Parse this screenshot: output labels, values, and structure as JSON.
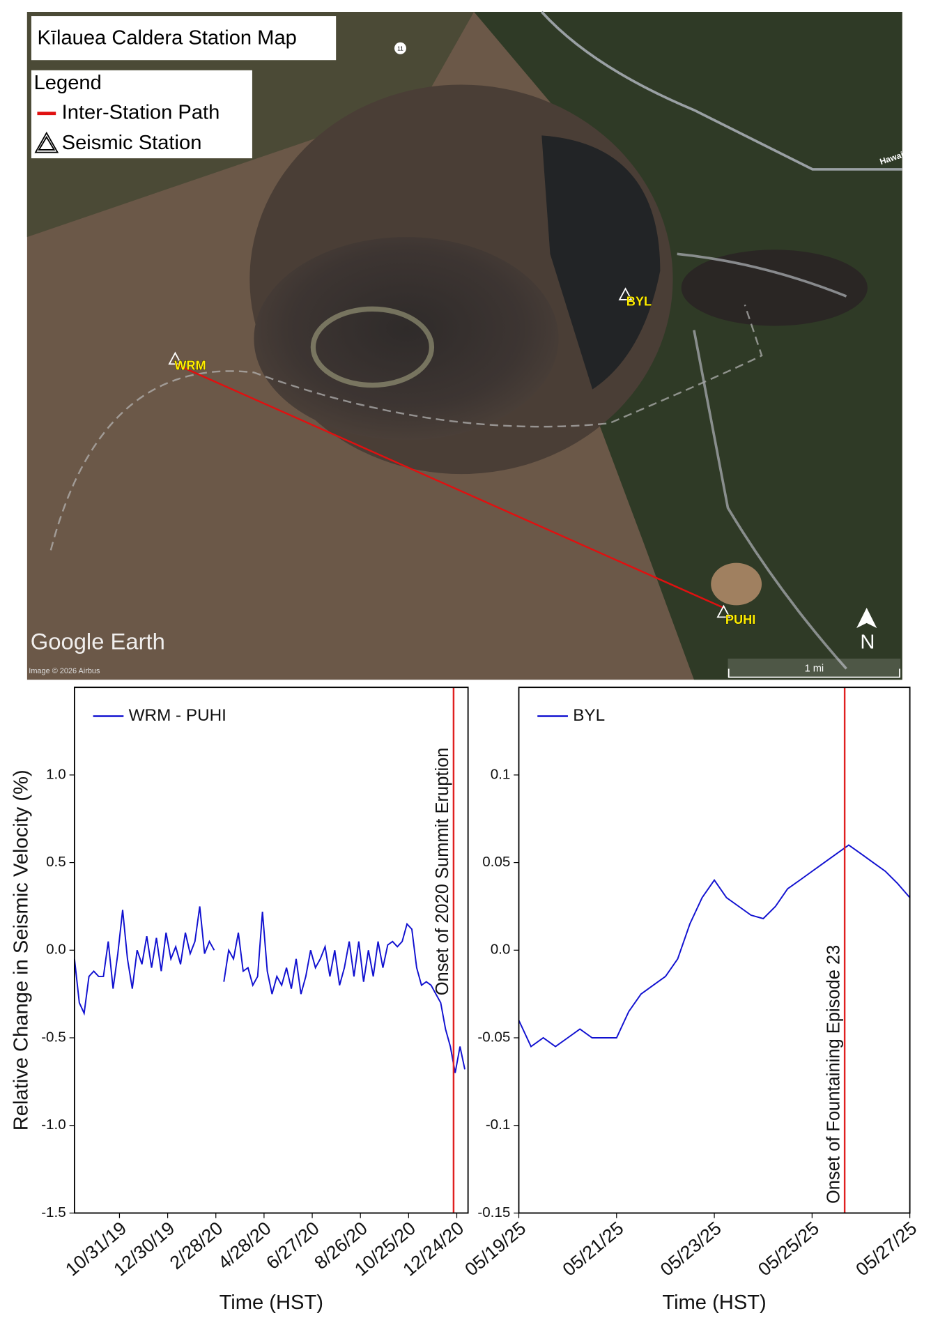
{
  "map": {
    "title": "Kīlauea Caldera Station Map",
    "legend_title": "Legend",
    "legend_items": [
      "Inter-Station Path",
      "Seismic Station"
    ],
    "stations": [
      "WRM",
      "BYL",
      "PUHI"
    ],
    "north": "N",
    "scale": "1 mi",
    "brand": "Google Earth",
    "credit": "Image © 2026 Airbus",
    "road": "11",
    "road_label": "Hawai'i Be"
  },
  "chart_data": [
    {
      "type": "line",
      "xlabel": "Time (HST)",
      "ylabel": "Relative Change in Seismic Velocity (%)",
      "x": [
        "2019-09-05",
        "2019-09-11",
        "2019-09-17",
        "2019-09-23",
        "2019-09-29",
        "2019-10-05",
        "2019-10-11",
        "2019-10-17",
        "2019-10-23",
        "2019-10-29",
        "2019-11-04",
        "2019-11-10",
        "2019-11-16",
        "2019-11-22",
        "2019-11-28",
        "2019-12-04",
        "2019-12-10",
        "2019-12-16",
        "2019-12-22",
        "2019-12-28",
        "2020-01-03",
        "2020-01-09",
        "2020-01-15",
        "2020-01-21",
        "2020-01-27",
        "2020-02-02",
        "2020-02-08",
        "2020-02-14",
        "2020-02-20",
        "2020-02-26",
        "2020-03-03",
        "2020-03-09",
        "2020-03-15",
        "2020-03-21",
        "2020-03-27",
        "2020-04-02",
        "2020-04-08",
        "2020-04-14",
        "2020-04-20",
        "2020-04-26",
        "2020-05-02",
        "2020-05-08",
        "2020-05-14",
        "2020-05-20",
        "2020-05-26",
        "2020-06-01",
        "2020-06-07",
        "2020-06-13",
        "2020-06-19",
        "2020-06-25",
        "2020-07-01",
        "2020-07-07",
        "2020-07-13",
        "2020-07-19",
        "2020-07-25",
        "2020-07-31",
        "2020-08-06",
        "2020-08-12",
        "2020-08-18",
        "2020-08-24",
        "2020-08-30",
        "2020-09-05",
        "2020-09-11",
        "2020-09-17",
        "2020-09-23",
        "2020-09-29",
        "2020-10-05",
        "2020-10-11",
        "2020-10-17",
        "2020-10-23",
        "2020-10-29",
        "2020-11-04",
        "2020-11-10",
        "2020-11-16",
        "2020-11-22",
        "2020-11-28",
        "2020-12-04",
        "2020-12-10",
        "2020-12-16",
        "2020-12-22",
        "2020-12-28",
        "2021-01-03"
      ],
      "series": [
        {
          "name": "WRM - PUHI",
          "color": "#1010d0",
          "values": [
            -0.05,
            -0.3,
            -0.36,
            -0.15,
            -0.12,
            -0.15,
            -0.15,
            0.05,
            -0.22,
            -0.02,
            0.23,
            -0.05,
            -0.22,
            0.0,
            -0.08,
            0.08,
            -0.1,
            0.07,
            -0.12,
            0.1,
            -0.05,
            0.02,
            -0.08,
            0.1,
            -0.02,
            0.05,
            0.25,
            -0.02,
            0.05,
            0.0,
            null,
            -0.18,
            0.0,
            -0.05,
            0.1,
            -0.12,
            -0.1,
            -0.2,
            -0.15,
            0.22,
            -0.12,
            -0.25,
            -0.15,
            -0.2,
            -0.1,
            -0.22,
            -0.05,
            -0.25,
            -0.15,
            0.0,
            -0.1,
            -0.05,
            0.02,
            -0.15,
            0.0,
            -0.2,
            -0.1,
            0.05,
            -0.15,
            0.05,
            -0.18,
            0.0,
            -0.15,
            0.05,
            -0.1,
            0.03,
            0.05,
            0.02,
            0.05,
            0.15,
            0.12,
            -0.1,
            -0.2,
            -0.18,
            -0.2,
            -0.25,
            -0.3,
            -0.45,
            -0.55,
            -0.7,
            -0.55,
            -0.68
          ]
        }
      ],
      "xlim": [
        "2019-09-05",
        "2021-01-07"
      ],
      "xticks": [
        {
          "value": "2019-10-31",
          "label": "10/31/19"
        },
        {
          "value": "2019-12-30",
          "label": "12/30/19"
        },
        {
          "value": "2020-02-28",
          "label": "2/28/20"
        },
        {
          "value": "2020-04-28",
          "label": "4/28/20"
        },
        {
          "value": "2020-06-27",
          "label": "6/27/20"
        },
        {
          "value": "2020-08-26",
          "label": "8/26/20"
        },
        {
          "value": "2020-10-25",
          "label": "10/25/20"
        },
        {
          "value": "2020-12-24",
          "label": "12/24/20"
        }
      ],
      "ylim": [
        -1.5,
        1.5
      ],
      "yticks": [
        {
          "value": -1.5,
          "label": "-1.5"
        },
        {
          "value": -1.0,
          "label": "-1.0"
        },
        -0.5,
        {
          "value": 0.0,
          "label": "0.0"
        },
        0.5,
        {
          "value": 1.0,
          "label": "1.0"
        }
      ],
      "vline": {
        "x": "2020-12-20",
        "label": "Onset of 2020 Summit Eruption",
        "color": "#e02020"
      },
      "legend": "upper left"
    },
    {
      "type": "line",
      "xlabel": "Time (HST)",
      "x": [
        "2025-05-19T00:00",
        "2025-05-19T06:00",
        "2025-05-19T12:00",
        "2025-05-19T18:00",
        "2025-05-20T00:00",
        "2025-05-20T06:00",
        "2025-05-20T12:00",
        "2025-05-20T18:00",
        "2025-05-21T00:00",
        "2025-05-21T06:00",
        "2025-05-21T12:00",
        "2025-05-21T18:00",
        "2025-05-22T00:00",
        "2025-05-22T06:00",
        "2025-05-22T12:00",
        "2025-05-22T18:00",
        "2025-05-23T00:00",
        "2025-05-23T06:00",
        "2025-05-23T12:00",
        "2025-05-23T18:00",
        "2025-05-24T00:00",
        "2025-05-24T06:00",
        "2025-05-24T12:00",
        "2025-05-24T18:00",
        "2025-05-25T00:00",
        "2025-05-25T06:00",
        "2025-05-25T12:00",
        "2025-05-25T18:00",
        "2025-05-26T00:00",
        "2025-05-26T06:00",
        "2025-05-26T12:00",
        "2025-05-26T18:00",
        "2025-05-27T00:00"
      ],
      "series": [
        {
          "name": "BYL",
          "color": "#1010d0",
          "values": [
            -0.04,
            -0.055,
            -0.05,
            -0.055,
            -0.05,
            -0.045,
            -0.05,
            -0.05,
            -0.05,
            -0.035,
            -0.025,
            -0.02,
            -0.015,
            -0.005,
            0.015,
            0.03,
            0.04,
            0.03,
            0.025,
            0.02,
            0.018,
            0.025,
            0.035,
            0.04,
            0.045,
            0.05,
            0.055,
            0.06,
            0.055,
            0.05,
            0.045,
            0.038,
            0.03
          ]
        }
      ],
      "xlim": [
        "2025-05-19T00:00",
        "2025-05-27T00:00"
      ],
      "xticks": [
        {
          "value": "2025-05-19T00:00",
          "label": "05/19/25"
        },
        {
          "value": "2025-05-21T00:00",
          "label": "05/21/25"
        },
        {
          "value": "2025-05-23T00:00",
          "label": "05/23/25"
        },
        {
          "value": "2025-05-25T00:00",
          "label": "05/25/25"
        },
        {
          "value": "2025-05-27T00:00",
          "label": "05/27/25"
        }
      ],
      "ylim": [
        -0.15,
        0.15
      ],
      "yticks": [
        -0.15,
        -0.1,
        -0.05,
        {
          "value": 0.0,
          "label": "0.0"
        },
        0.05,
        0.1
      ],
      "vline": {
        "x": "2025-05-25T16:00",
        "label": "Onset of Fountaining Episode 23",
        "color": "#e02020"
      },
      "legend": "upper left"
    }
  ]
}
